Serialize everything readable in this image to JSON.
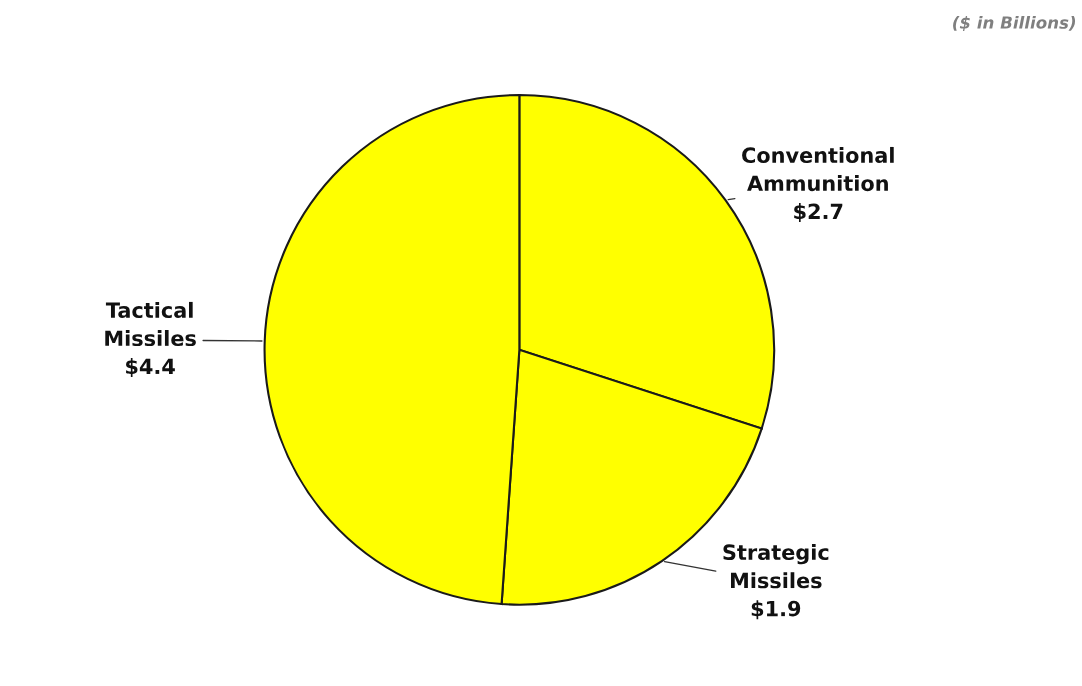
{
  "chart_data": {
    "type": "pie",
    "categories": [
      "Conventional\nAmmunition",
      "Strategic\nMissiles",
      "Tactical\nMissiles"
    ],
    "values": [
      2.7,
      1.9,
      4.4
    ],
    "value_labels": [
      "$2.7",
      "$1.9",
      "$4.4"
    ],
    "colors": [
      "#ffff00",
      "#ffff00",
      "#ffff00"
    ],
    "annotations": [
      "($ in Billions)"
    ]
  }
}
